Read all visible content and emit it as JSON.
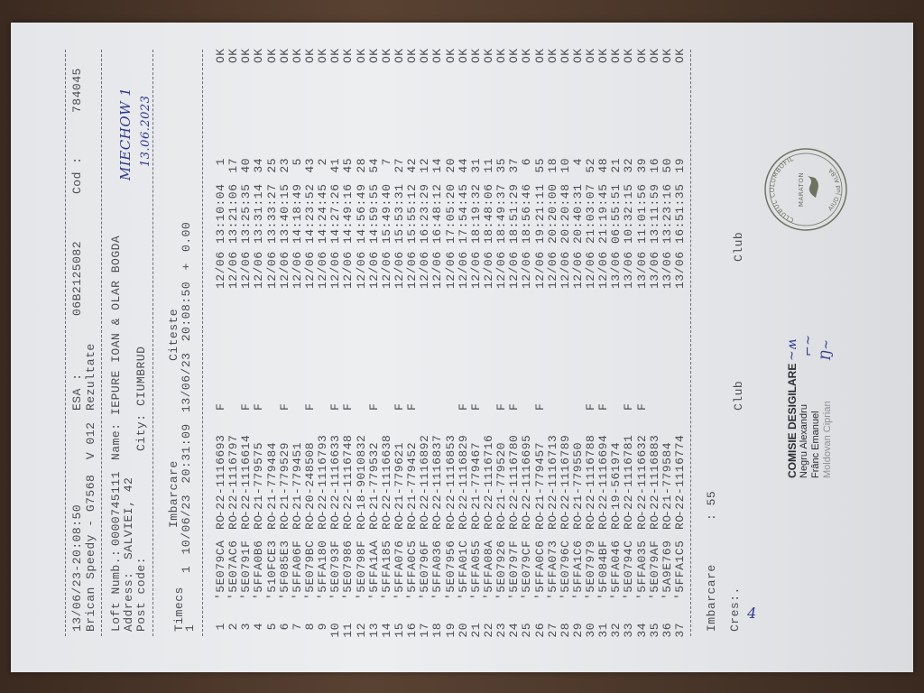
{
  "header": {
    "datetime": "13/06/23-20:08:50",
    "device": "Brican Speedy - G7568  V 012",
    "esa_label": "ESA :",
    "esa_value": "06B2125082",
    "report_type": "Rezultate",
    "cod_label": "Cod :",
    "cod_value": "784045"
  },
  "fancier": {
    "loft_label": "Loft Numb.:",
    "loft_value": "0000745111",
    "address_label": "Address:",
    "address_value": "SALVIEI, 42",
    "postcode_label": "Post code:",
    "name_label": "Name:",
    "name_value": "IEPURE IOAN & OLAR BOGDA",
    "city_label": "City:",
    "city_value": "CIUMBRUD"
  },
  "handwritten": {
    "race": "MIECHOW 1",
    "date": "13.06.2023",
    "cres_mark": "4"
  },
  "race": {
    "col_timecs": "Timecs",
    "col_imbarcare": "Imbarcare",
    "col_citeste": "Citeste",
    "timer_index": "1",
    "line": "1 10/06/23 20:31:09 13/06/23 20:08:50 + 0.00"
  },
  "rows": [
    {
      "n": "1",
      "code": "'5E079CA",
      "country": "RO",
      "ring": "-22-1116693",
      "flag": "F",
      "date": "12/06",
      "time": "13:10:04",
      "rank": "1",
      "status": "OK"
    },
    {
      "n": "2",
      "code": "'5E07AC6",
      "country": "RO",
      "ring": "-22-1116797",
      "flag": "",
      "date": "12/06",
      "time": "13:21:06",
      "rank": "17",
      "status": "OK"
    },
    {
      "n": "3",
      "code": "'5E0791F",
      "country": "RO",
      "ring": "-22-1116614",
      "flag": "F",
      "date": "12/06",
      "time": "13:25:35",
      "rank": "40",
      "status": "OK"
    },
    {
      "n": "4",
      "code": "'5FFA0B6",
      "country": "RO",
      "ring": "-21-779575",
      "flag": "F",
      "date": "12/06",
      "time": "13:31:14",
      "rank": "34",
      "status": "OK"
    },
    {
      "n": "5",
      "code": "'510FCE3",
      "country": "RO",
      "ring": "-21-779484",
      "flag": "",
      "date": "12/06",
      "time": "13:33:27",
      "rank": "25",
      "status": "OK"
    },
    {
      "n": "6",
      "code": "'5F085E3",
      "country": "RO",
      "ring": "-21-779529",
      "flag": "F",
      "date": "12/06",
      "time": "13:40:15",
      "rank": "23",
      "status": "OK"
    },
    {
      "n": "7",
      "code": "'5FFA06F",
      "country": "RO",
      "ring": "-21-779451",
      "flag": "",
      "date": "12/06",
      "time": "14:18:49",
      "rank": "5",
      "status": "OK"
    },
    {
      "n": "8",
      "code": "'5E079BC",
      "country": "RO",
      "ring": "-20-248508",
      "flag": "F",
      "date": "12/06",
      "time": "14:23:52",
      "rank": "43",
      "status": "OK"
    },
    {
      "n": "9",
      "code": "'5FFA180",
      "country": "RO",
      "ring": "-22-1116793",
      "flag": "",
      "date": "12/06",
      "time": "14:24:45",
      "rank": "2",
      "status": "OK"
    },
    {
      "n": "10",
      "code": "'5E0793F",
      "country": "RO",
      "ring": "-22-1116633",
      "flag": "F",
      "date": "12/06",
      "time": "14:27:26",
      "rank": "41",
      "status": "OK"
    },
    {
      "n": "11",
      "code": "'5E07986",
      "country": "RO",
      "ring": "-22-1116748",
      "flag": "F",
      "date": "12/06",
      "time": "14:49:16",
      "rank": "45",
      "status": "OK"
    },
    {
      "n": "12",
      "code": "'5E0798F",
      "country": "RO",
      "ring": "-18-9010832",
      "flag": "",
      "date": "12/06",
      "time": "14:56:49",
      "rank": "28",
      "status": "OK"
    },
    {
      "n": "13",
      "code": "'5FFA1AA",
      "country": "RO",
      "ring": "-21-779532",
      "flag": "F",
      "date": "12/06",
      "time": "14:59:55",
      "rank": "54",
      "status": "OK"
    },
    {
      "n": "14",
      "code": "'5FFA185",
      "country": "RO",
      "ring": "-22-1116638",
      "flag": "",
      "date": "12/06",
      "time": "15:49:40",
      "rank": "7",
      "status": "OK"
    },
    {
      "n": "15",
      "code": "'5FFA076",
      "country": "RO",
      "ring": "-21-779621",
      "flag": "F",
      "date": "12/06",
      "time": "15:53:31",
      "rank": "27",
      "status": "OK"
    },
    {
      "n": "16",
      "code": "'5FFA0C5",
      "country": "RO",
      "ring": "-21-779452",
      "flag": "F",
      "date": "12/06",
      "time": "15:55:12",
      "rank": "42",
      "status": "OK"
    },
    {
      "n": "17",
      "code": "'5E0796F",
      "country": "RO",
      "ring": "-22-1116892",
      "flag": "",
      "date": "12/06",
      "time": "16:23:29",
      "rank": "12",
      "status": "OK"
    },
    {
      "n": "18",
      "code": "'5FFA036",
      "country": "RO",
      "ring": "-22-1116837",
      "flag": "",
      "date": "12/06",
      "time": "16:48:12",
      "rank": "14",
      "status": "OK"
    },
    {
      "n": "19",
      "code": "'5E07956",
      "country": "RO",
      "ring": "-22-1116853",
      "flag": "",
      "date": "12/06",
      "time": "17:05:20",
      "rank": "20",
      "status": "OK"
    },
    {
      "n": "20",
      "code": "'5FFA01C",
      "country": "RO",
      "ring": "-22-1116829",
      "flag": "F",
      "date": "12/06",
      "time": "17:54:45",
      "rank": "44",
      "status": "OK"
    },
    {
      "n": "21",
      "code": "'5FFA055",
      "country": "RO",
      "ring": "-21-779467",
      "flag": "F",
      "date": "12/06",
      "time": "18:19:32",
      "rank": "31",
      "status": "OK"
    },
    {
      "n": "22",
      "code": "'5FFA08A",
      "country": "RO",
      "ring": "-22-1116716",
      "flag": "",
      "date": "12/06",
      "time": "18:48:06",
      "rank": "11",
      "status": "OK"
    },
    {
      "n": "23",
      "code": "'5E07926",
      "country": "RO",
      "ring": "-21-779520",
      "flag": "F",
      "date": "12/06",
      "time": "18:49:37",
      "rank": "35",
      "status": "OK"
    },
    {
      "n": "24",
      "code": "'5E0797F",
      "country": "RO",
      "ring": "-22-1116780",
      "flag": "F",
      "date": "12/06",
      "time": "18:51:29",
      "rank": "37",
      "status": "OK"
    },
    {
      "n": "25",
      "code": "'5E079CF",
      "country": "RO",
      "ring": "-22-1116695",
      "flag": "",
      "date": "12/06",
      "time": "18:56:46",
      "rank": "6",
      "status": "OK"
    },
    {
      "n": "26",
      "code": "'5FFA0C6",
      "country": "RO",
      "ring": "-21-779457",
      "flag": "F",
      "date": "12/06",
      "time": "19:21:11",
      "rank": "55",
      "status": "OK"
    },
    {
      "n": "27",
      "code": "'5FFA073",
      "country": "RO",
      "ring": "-22-1116713",
      "flag": "",
      "date": "12/06",
      "time": "20:20:00",
      "rank": "18",
      "status": "OK"
    },
    {
      "n": "28",
      "code": "'5E0796C",
      "country": "RO",
      "ring": "-22-1116789",
      "flag": "",
      "date": "12/06",
      "time": "20:20:48",
      "rank": "10",
      "status": "OK"
    },
    {
      "n": "29",
      "code": "'5FFA1C6",
      "country": "RO",
      "ring": "-21-779550",
      "flag": "",
      "date": "12/06",
      "time": "20:40:31",
      "rank": "4",
      "status": "OK"
    },
    {
      "n": "30",
      "code": "'5E07979",
      "country": "RO",
      "ring": "-22-1116788",
      "flag": "F",
      "date": "12/06",
      "time": "21:03:07",
      "rank": "52",
      "status": "OK"
    },
    {
      "n": "31",
      "code": "'5F084BF",
      "country": "RO",
      "ring": "-22-1116694",
      "flag": "F",
      "date": "12/06",
      "time": "21:19:45",
      "rank": "48",
      "status": "OK"
    },
    {
      "n": "32",
      "code": "'5FFA046",
      "country": "RO",
      "ring": "-19-561974",
      "flag": "",
      "date": "13/06",
      "time": "06:55:51",
      "rank": "21",
      "status": "OK"
    },
    {
      "n": "33",
      "code": "'5E0794C",
      "country": "RO",
      "ring": "-22-1116781",
      "flag": "F",
      "date": "13/06",
      "time": "10:32:15",
      "rank": "32",
      "status": "OK"
    },
    {
      "n": "34",
      "code": "'5FFA035",
      "country": "RO",
      "ring": "-22-1116632",
      "flag": "F",
      "date": "13/06",
      "time": "11:01:56",
      "rank": "39",
      "status": "OK"
    },
    {
      "n": "35",
      "code": "'5E079AF",
      "country": "RO",
      "ring": "-22-1116883",
      "flag": "",
      "date": "13/06",
      "time": "13:11:59",
      "rank": "16",
      "status": "OK"
    },
    {
      "n": "36",
      "code": "'5A9E769",
      "country": "RO",
      "ring": "-21-779584",
      "flag": "",
      "date": "13/06",
      "time": "13:23:16",
      "rank": "50",
      "status": "OK"
    },
    {
      "n": "37",
      "code": "'5FFA1C5",
      "country": "RO",
      "ring": "-22-1116774",
      "flag": "",
      "date": "13/06",
      "time": "16:51:35",
      "rank": "19",
      "status": "OK"
    }
  ],
  "footer": {
    "imbarcare_label": "Imbarcare",
    "imbarcare_value": ": 55",
    "cres_label": "Cres:.",
    "club_left": "Club",
    "club_right": "Club"
  },
  "commission": {
    "title": "COMISIE DESIGILARE",
    "members": [
      "Negru Alexandru",
      "Frânc Emanuel",
      "Moldovan Ciprian"
    ]
  },
  "stamp": {
    "top_text": "CLUBUL COLUMBOFIL",
    "center_text": "MARATON",
    "bottom_text": "AIUD jud ALBA"
  },
  "colors": {
    "ink": "#4b4d52",
    "pen": "#2f3a8c",
    "stamp": "#6e7260",
    "paper": "#e9ebee"
  }
}
